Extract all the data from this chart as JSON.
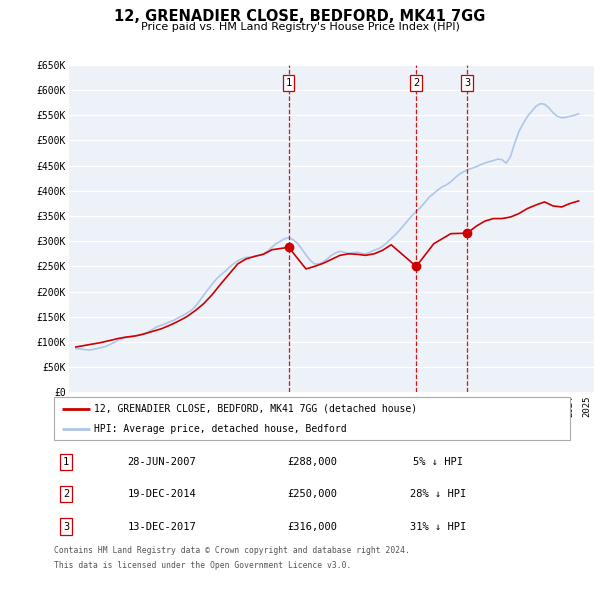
{
  "title": "12, GRENADIER CLOSE, BEDFORD, MK41 7GG",
  "subtitle": "Price paid vs. HM Land Registry's House Price Index (HPI)",
  "hpi_label": "HPI: Average price, detached house, Bedford",
  "price_label": "12, GRENADIER CLOSE, BEDFORD, MK41 7GG (detached house)",
  "footnote1": "Contains HM Land Registry data © Crown copyright and database right 2024.",
  "footnote2": "This data is licensed under the Open Government Licence v3.0.",
  "ylim": [
    0,
    650000
  ],
  "yticks": [
    0,
    50000,
    100000,
    150000,
    200000,
    250000,
    300000,
    350000,
    400000,
    450000,
    500000,
    550000,
    600000,
    650000
  ],
  "ytick_labels": [
    "£0",
    "£50K",
    "£100K",
    "£150K",
    "£200K",
    "£250K",
    "£300K",
    "£350K",
    "£400K",
    "£450K",
    "£500K",
    "£550K",
    "£600K",
    "£650K"
  ],
  "hpi_color": "#aec6e8",
  "price_color": "#cc0000",
  "marker_color": "#cc0000",
  "vline_color": "#cc0000",
  "bg_color": "#edf2f9",
  "grid_color": "#ffffff",
  "transactions": [
    {
      "label": "1",
      "date": "28-JUN-2007",
      "x": 2007.49,
      "price": 288000,
      "pct": "5%",
      "dir": "↓"
    },
    {
      "label": "2",
      "date": "19-DEC-2014",
      "x": 2014.97,
      "price": 250000,
      "pct": "28%",
      "dir": "↓"
    },
    {
      "label": "3",
      "date": "13-DEC-2017",
      "x": 2017.95,
      "price": 316000,
      "pct": "31%",
      "dir": "↓"
    }
  ],
  "hpi_data": {
    "years": [
      1995.0,
      1995.25,
      1995.5,
      1995.75,
      1996.0,
      1996.25,
      1996.5,
      1996.75,
      1997.0,
      1997.25,
      1997.5,
      1997.75,
      1998.0,
      1998.25,
      1998.5,
      1998.75,
      1999.0,
      1999.25,
      1999.5,
      1999.75,
      2000.0,
      2000.25,
      2000.5,
      2000.75,
      2001.0,
      2001.25,
      2001.5,
      2001.75,
      2002.0,
      2002.25,
      2002.5,
      2002.75,
      2003.0,
      2003.25,
      2003.5,
      2003.75,
      2004.0,
      2004.25,
      2004.5,
      2004.75,
      2005.0,
      2005.25,
      2005.5,
      2005.75,
      2006.0,
      2006.25,
      2006.5,
      2006.75,
      2007.0,
      2007.25,
      2007.5,
      2007.75,
      2008.0,
      2008.25,
      2008.5,
      2008.75,
      2009.0,
      2009.25,
      2009.5,
      2009.75,
      2010.0,
      2010.25,
      2010.5,
      2010.75,
      2011.0,
      2011.25,
      2011.5,
      2011.75,
      2012.0,
      2012.25,
      2012.5,
      2012.75,
      2013.0,
      2013.25,
      2013.5,
      2013.75,
      2014.0,
      2014.25,
      2014.5,
      2014.75,
      2015.0,
      2015.25,
      2015.5,
      2015.75,
      2016.0,
      2016.25,
      2016.5,
      2016.75,
      2017.0,
      2017.25,
      2017.5,
      2017.75,
      2018.0,
      2018.25,
      2018.5,
      2018.75,
      2019.0,
      2019.25,
      2019.5,
      2019.75,
      2020.0,
      2020.25,
      2020.5,
      2020.75,
      2021.0,
      2021.25,
      2021.5,
      2021.75,
      2022.0,
      2022.25,
      2022.5,
      2022.75,
      2023.0,
      2023.25,
      2023.5,
      2023.75,
      2024.0,
      2024.25,
      2024.5
    ],
    "values": [
      87000,
      86000,
      85000,
      84000,
      85000,
      87000,
      89000,
      91000,
      95000,
      99000,
      104000,
      107000,
      109000,
      110000,
      112000,
      113000,
      116000,
      120000,
      125000,
      130000,
      133000,
      136000,
      140000,
      143000,
      148000,
      152000,
      157000,
      162000,
      170000,
      181000,
      193000,
      204000,
      215000,
      225000,
      233000,
      240000,
      248000,
      255000,
      261000,
      265000,
      268000,
      268000,
      270000,
      272000,
      275000,
      280000,
      288000,
      295000,
      300000,
      305000,
      307000,
      303000,
      296000,
      285000,
      273000,
      262000,
      255000,
      255000,
      258000,
      265000,
      272000,
      277000,
      280000,
      278000,
      276000,
      277000,
      278000,
      276000,
      275000,
      278000,
      282000,
      285000,
      290000,
      297000,
      305000,
      313000,
      322000,
      332000,
      342000,
      352000,
      360000,
      368000,
      378000,
      388000,
      395000,
      402000,
      408000,
      412000,
      418000,
      426000,
      433000,
      438000,
      442000,
      445000,
      448000,
      452000,
      455000,
      458000,
      460000,
      463000,
      462000,
      455000,
      468000,
      495000,
      518000,
      534000,
      548000,
      558000,
      568000,
      573000,
      572000,
      565000,
      555000,
      548000,
      545000,
      546000,
      548000,
      550000,
      553000
    ]
  },
  "price_series": {
    "years": [
      1995.0,
      1995.5,
      1996.0,
      1996.5,
      1997.0,
      1997.5,
      1998.0,
      1998.5,
      1999.0,
      1999.5,
      2000.0,
      2000.5,
      2001.0,
      2001.5,
      2002.0,
      2002.5,
      2003.0,
      2003.5,
      2004.0,
      2004.5,
      2005.0,
      2005.5,
      2006.0,
      2006.5,
      2007.49,
      2008.5,
      2009.0,
      2009.5,
      2010.0,
      2010.5,
      2011.0,
      2011.5,
      2012.0,
      2012.5,
      2013.0,
      2013.5,
      2014.97,
      2016.0,
      2016.5,
      2017.0,
      2017.95,
      2018.5,
      2019.0,
      2019.5,
      2020.0,
      2020.5,
      2021.0,
      2021.5,
      2022.0,
      2022.5,
      2023.0,
      2023.5,
      2024.0,
      2024.5
    ],
    "values": [
      90000,
      93000,
      96000,
      99000,
      103000,
      107000,
      110000,
      112000,
      116000,
      121000,
      126000,
      133000,
      141000,
      150000,
      162000,
      176000,
      194000,
      215000,
      235000,
      255000,
      265000,
      270000,
      274000,
      283000,
      288000,
      245000,
      250000,
      256000,
      264000,
      272000,
      275000,
      274000,
      272000,
      275000,
      282000,
      293000,
      250000,
      295000,
      305000,
      315000,
      316000,
      330000,
      340000,
      345000,
      345000,
      348000,
      355000,
      365000,
      372000,
      378000,
      370000,
      368000,
      375000,
      380000
    ]
  }
}
